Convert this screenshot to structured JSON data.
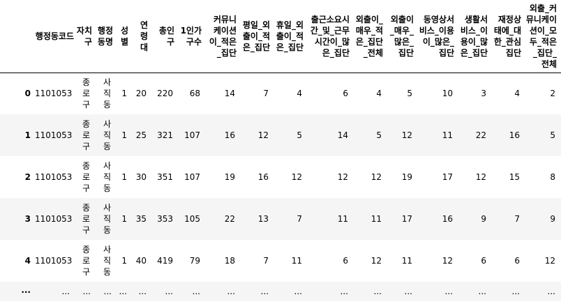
{
  "table": {
    "columns": [
      "행정동코드",
      "자치구",
      "행정동명",
      "성별",
      "연령대",
      "총인구",
      "1인가구수",
      "커뮤니케이션이_적은_집단",
      "평일_외출이_적은_집단",
      "휴일_외출이_적은_집단",
      "출근소요시간_및_근무시간이_많은_집단",
      "외출이_매우_적은_집단_전체",
      "외출이_매우_많은_집단",
      "동영상서비스_이용이_많은_집단",
      "생활서비스_이용이_많은_집단",
      "재정상태에_대한_관심집단",
      "외출_커뮤니케이션이_모두_적은_집단_전체"
    ],
    "rows": [
      {
        "index": "0",
        "cells": [
          "1101053",
          "종로구",
          "사직동",
          "1",
          "20",
          "220",
          "68",
          "14",
          "7",
          "4",
          "6",
          "4",
          "5",
          "10",
          "3",
          "4",
          "2"
        ]
      },
      {
        "index": "1",
        "cells": [
          "1101053",
          "종로구",
          "사직동",
          "1",
          "25",
          "321",
          "107",
          "16",
          "12",
          "5",
          "14",
          "5",
          "12",
          "11",
          "22",
          "16",
          "5"
        ]
      },
      {
        "index": "2",
        "cells": [
          "1101053",
          "종로구",
          "사직동",
          "1",
          "30",
          "351",
          "107",
          "19",
          "16",
          "12",
          "12",
          "12",
          "19",
          "17",
          "12",
          "15",
          "8"
        ]
      },
      {
        "index": "3",
        "cells": [
          "1101053",
          "종로구",
          "사직동",
          "1",
          "35",
          "353",
          "105",
          "22",
          "13",
          "7",
          "11",
          "11",
          "17",
          "16",
          "9",
          "7",
          "9"
        ]
      },
      {
        "index": "4",
        "cells": [
          "1101053",
          "종로구",
          "사직동",
          "1",
          "40",
          "419",
          "79",
          "18",
          "7",
          "11",
          "6",
          "12",
          "11",
          "12",
          "6",
          "6",
          "12"
        ]
      }
    ],
    "ellipsis": "..."
  }
}
